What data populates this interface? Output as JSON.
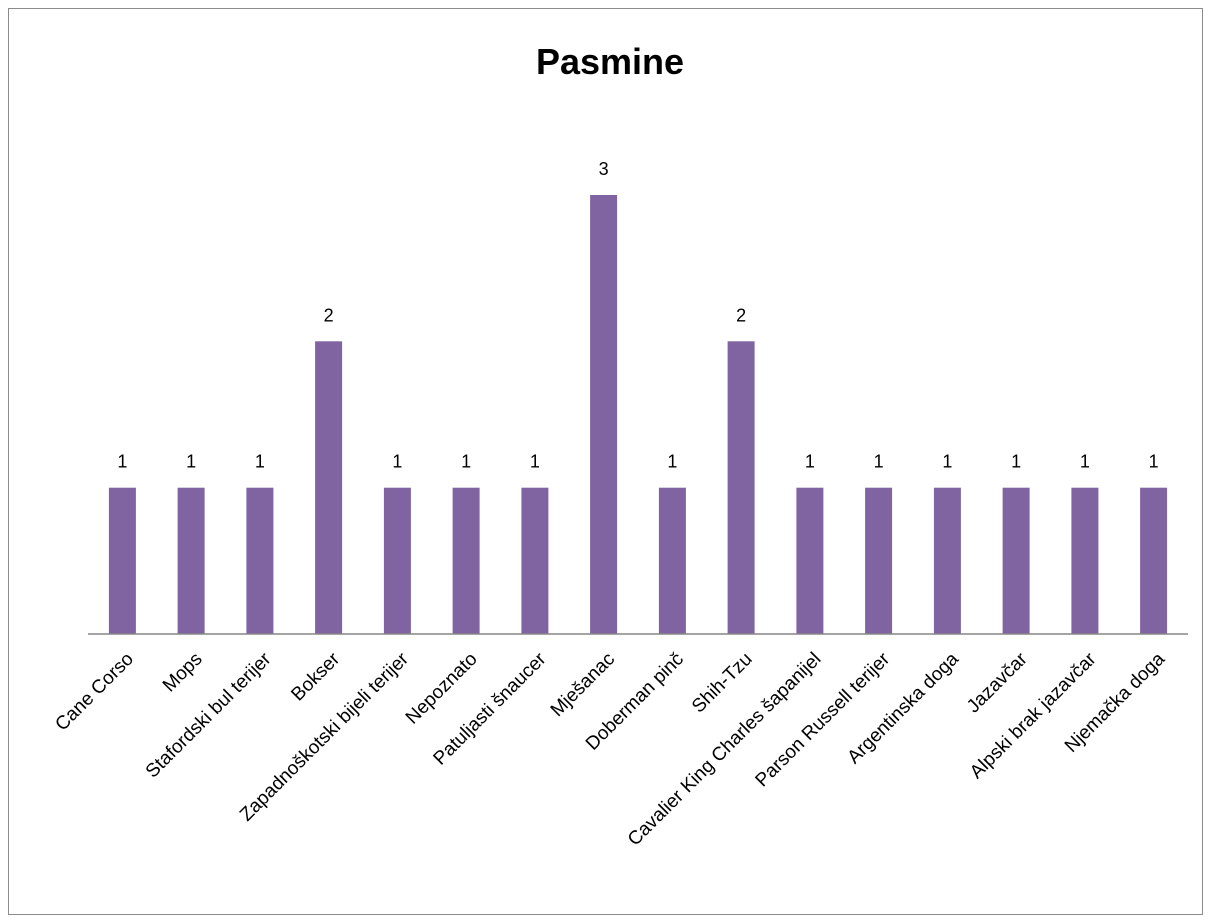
{
  "chart_data": {
    "type": "bar",
    "title": "Pasmine",
    "xlabel": "",
    "ylabel": "",
    "ylim": [
      0,
      3
    ],
    "grid": false,
    "legend": "none",
    "bar_color": "#8064A2",
    "axis_color": "#868686",
    "categories": [
      "Cane Corso",
      "Mops",
      "Stafordski bul terijer",
      "Bokser",
      "Zapadnoškotski bijeli terijer",
      "Nepoznato",
      "Patuljasti šnaucer",
      "Mješanac",
      "Doberman pinč",
      "Shih-Tzu",
      "Cavalier King Charles šapanijel",
      "Parson Russell terijer",
      "Argentinska doga",
      "Jazavčar",
      "Alpski brak jazavčar",
      "Njemačka doga"
    ],
    "values": [
      1,
      1,
      1,
      2,
      1,
      1,
      1,
      3,
      1,
      2,
      1,
      1,
      1,
      1,
      1,
      1
    ]
  }
}
